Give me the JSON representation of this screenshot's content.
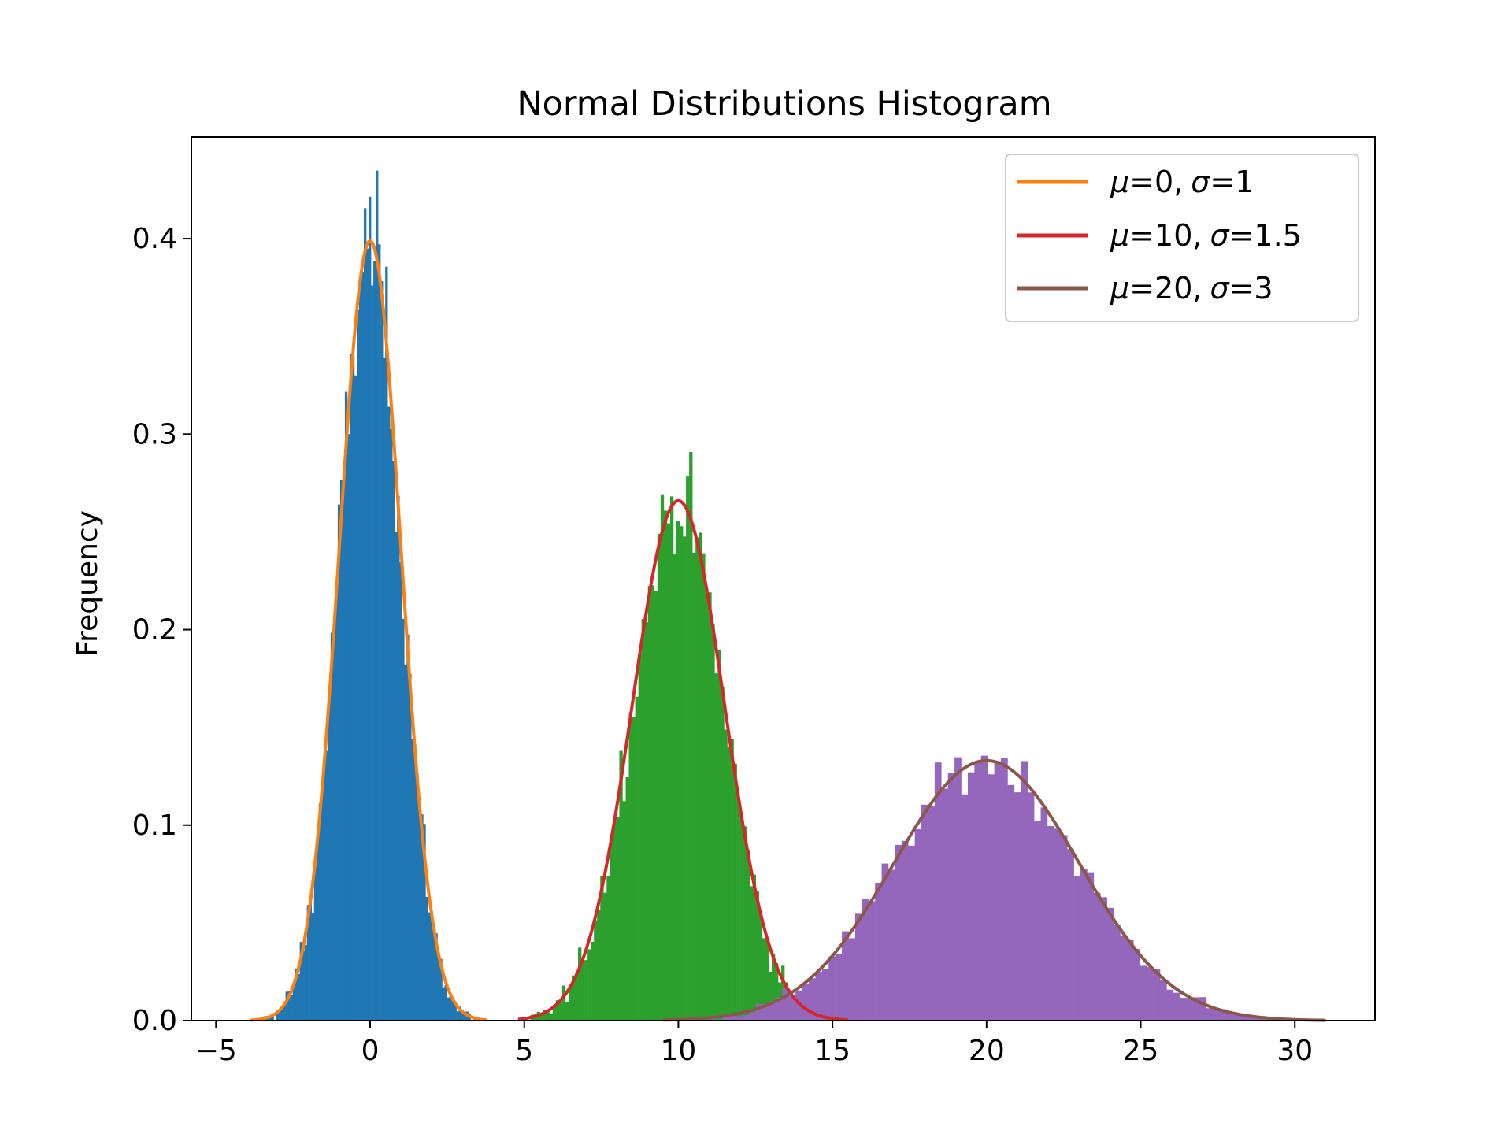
{
  "chart_data": {
    "type": "bar",
    "title": "Normal Distributions Histogram",
    "xlabel": "",
    "ylabel": "Frequency",
    "xlim": [
      -5.8,
      32.6
    ],
    "ylim": [
      0,
      0.452
    ],
    "xticks": [
      -5,
      0,
      5,
      10,
      15,
      20,
      25,
      30
    ],
    "xtick_labels": [
      "−5",
      "0",
      "5",
      "10",
      "15",
      "20",
      "25",
      "30"
    ],
    "yticks": [
      0.0,
      0.1,
      0.2,
      0.3,
      0.4
    ],
    "ytick_labels": [
      "0.0",
      "0.1",
      "0.2",
      "0.3",
      "0.4"
    ],
    "grid": false,
    "legend_position": "upper right",
    "histograms": [
      {
        "mean": 0,
        "std": 1,
        "bins": 100,
        "range": [
          -3.9,
          3.8
        ],
        "color": "#1f77b4",
        "peak_frequency": 0.43
      },
      {
        "mean": 10,
        "std": 1.5,
        "bins": 100,
        "range": [
          5.2,
          15.5
        ],
        "color": "#2ca02c",
        "peak_frequency": 0.29
      },
      {
        "mean": 20,
        "std": 3,
        "bins": 100,
        "range": [
          9.5,
          31.0
        ],
        "color": "#9467bd",
        "peak_frequency": 0.144
      }
    ],
    "series": [
      {
        "name": "μ=0, σ=1",
        "mean": 0,
        "std": 1,
        "x_range": [
          -3.9,
          3.8
        ],
        "color": "#ff7f0e"
      },
      {
        "name": "μ=10, σ=1.5",
        "mean": 10,
        "std": 1.5,
        "x_range": [
          4.8,
          15.5
        ],
        "color": "#d62728"
      },
      {
        "name": "μ=20, σ=3",
        "mean": 20,
        "std": 3,
        "x_range": [
          9.5,
          31.0
        ],
        "color": "#8c564b"
      }
    ]
  },
  "legend": [
    {
      "mu_sym": "μ",
      "mu_val": "=0,",
      "sigma_sym": "σ",
      "sigma_val": "=1"
    },
    {
      "mu_sym": "μ",
      "mu_val": "=10,",
      "sigma_sym": "σ",
      "sigma_val": "=1.5"
    },
    {
      "mu_sym": "μ",
      "mu_val": "=20,",
      "sigma_sym": "σ",
      "sigma_val": "=3"
    }
  ]
}
